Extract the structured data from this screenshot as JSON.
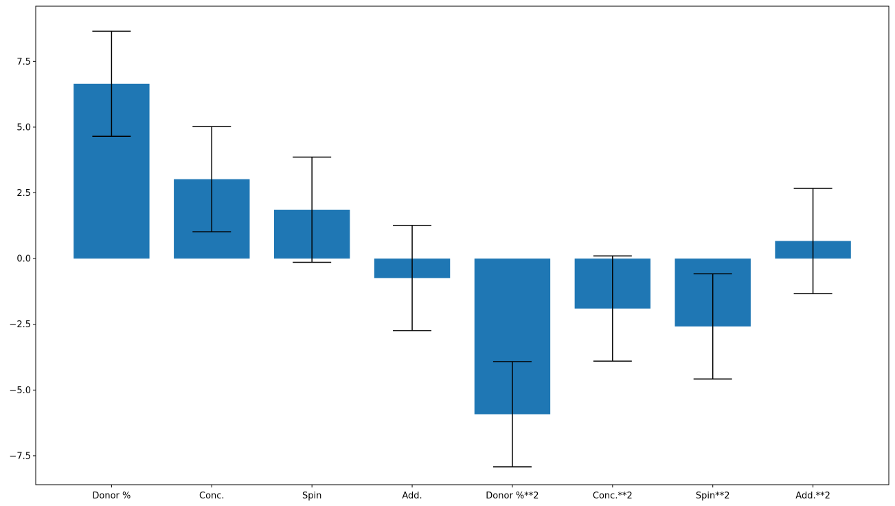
{
  "chart_data": {
    "type": "bar",
    "title": "",
    "xlabel": "",
    "ylabel": "",
    "categories": [
      "Donor %",
      "Conc.",
      "Spin",
      "Add.",
      "Donor %**2",
      "Conc.**2",
      "Spin**2",
      "Add.**2"
    ],
    "values": [
      6.65,
      3.02,
      1.86,
      -0.74,
      -5.92,
      -1.9,
      -2.58,
      0.67
    ],
    "error": [
      2.0,
      2.0,
      2.0,
      2.0,
      2.0,
      2.0,
      2.0,
      2.0
    ],
    "ylim": [
      -8.6,
      9.6
    ],
    "yticks": [
      -7.5,
      -5.0,
      -2.5,
      0.0,
      2.5,
      5.0,
      7.5
    ],
    "ytick_labels": [
      "−7.5",
      "−5.0",
      "−2.5",
      "0.0",
      "2.5",
      "5.0",
      "7.5"
    ],
    "grid": false,
    "bar_color": "#1f77b4",
    "error_color": "#000000"
  }
}
